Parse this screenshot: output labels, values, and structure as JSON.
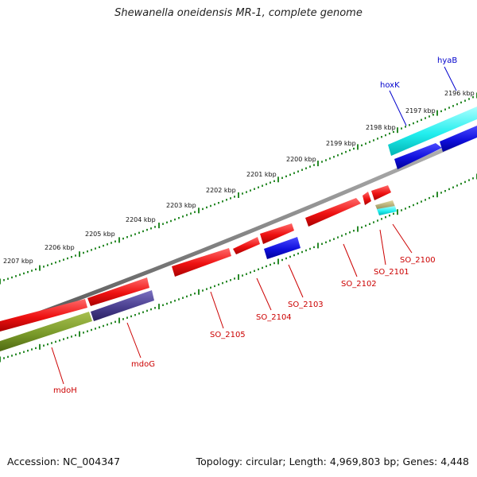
{
  "title": "Shewanella oneidensis MR-1, complete genome",
  "footer": {
    "accession": "Accession: NC_004347",
    "summary": "Topology: circular; Length: 4,969,803 bp; Genes: 4,448"
  },
  "colors": {
    "backbone": "#888888",
    "tick": "#2a8a2a",
    "red_gene": "#ee1111",
    "blue_gene": "#1515dd",
    "cyan_gene": "#22eeee",
    "olive_gene": "#7a9a2a",
    "slate_gene": "#4a3f8f",
    "tan_gene": "#b8b070",
    "red_label": "#cc0000",
    "blue_label": "#0000cc"
  },
  "axis_ticks": [
    "2196 kbp",
    "2197 kbp",
    "2198 kbp",
    "2199 kbp",
    "2200 kbp",
    "2201 kbp",
    "2202 kbp",
    "2203 kbp",
    "2204 kbp",
    "2205 kbp",
    "2206 kbp",
    "2207 kbp"
  ],
  "gene_labels": [
    {
      "id": "hyaB",
      "text": "hyaB",
      "color": "blue"
    },
    {
      "id": "hoxK",
      "text": "hoxK",
      "color": "blue"
    },
    {
      "id": "SO_2100",
      "text": "SO_2100",
      "color": "red"
    },
    {
      "id": "SO_2101",
      "text": "SO_2101",
      "color": "red"
    },
    {
      "id": "SO_2102",
      "text": "SO_2102",
      "color": "red"
    },
    {
      "id": "SO_2103",
      "text": "SO_2103",
      "color": "red"
    },
    {
      "id": "SO_2104",
      "text": "SO_2104",
      "color": "red"
    },
    {
      "id": "SO_2105",
      "text": "SO_2105",
      "color": "red"
    },
    {
      "id": "mdoG",
      "text": "mdoG",
      "color": "red"
    },
    {
      "id": "mdoH",
      "text": "mdoH",
      "color": "red"
    }
  ]
}
